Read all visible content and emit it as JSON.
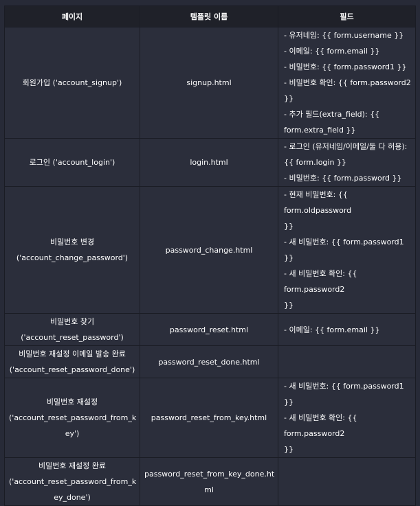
{
  "headers": [
    "페이지",
    "템플릿 이름",
    "필드"
  ],
  "rows": [
    {
      "page": [
        "회원가입 ('account_signup')"
      ],
      "template": [
        "signup.html"
      ],
      "fields": [
        "- 유저네임: {{ form.username }}",
        "- 이메일: {{ form.email }}",
        "- 비밀번호: {{ form.password1 }}",
        "- 비밀번호 확인: {{ form.password2 }}",
        "- 추가 필드(extra_field): {{",
        "form.extra_field }}"
      ]
    },
    {
      "page": [
        "로그인 ('account_login')"
      ],
      "template": [
        "login.html"
      ],
      "fields": [
        "- 로그인 (유저네임/이메일/둘 다 허용):",
        "{{ form.login }}",
        "- 비밀번호: {{ form.password }}"
      ]
    },
    {
      "page": [
        "비밀번호 변경",
        "('account_change_password')"
      ],
      "template": [
        "password_change.html"
      ],
      "fields": [
        "- 현재 비밀번호: {{ form.oldpassword",
        "}}",
        "- 새 비밀번호: {{ form.password1 }}",
        "- 새 비밀번호 확인: {{ form.password2",
        "}}"
      ]
    },
    {
      "page": [
        "비밀번호 찾기",
        "('account_reset_password')"
      ],
      "template": [
        "password_reset.html"
      ],
      "fields": [
        "- 이메일: {{ form.email }}"
      ]
    },
    {
      "page": [
        "비밀번호 재설정 이메일 발송 완료",
        "('account_reset_password_done')"
      ],
      "template": [
        "password_reset_done.html"
      ],
      "fields": []
    },
    {
      "page": [
        "비밀번호 재설정",
        "('account_reset_password_from_k",
        "ey')"
      ],
      "template": [
        "password_reset_from_key.html"
      ],
      "fields": [
        "- 새 비밀번호: {{ form.password1 }}",
        "- 새 비밀번호 확인: {{ form.password2",
        "}}"
      ]
    },
    {
      "page": [
        "비밀번호 재설정 완료",
        "('account_reset_password_from_k",
        "ey_done')"
      ],
      "template": [
        "password_reset_from_key_done.ht",
        "ml"
      ],
      "fields": []
    }
  ]
}
